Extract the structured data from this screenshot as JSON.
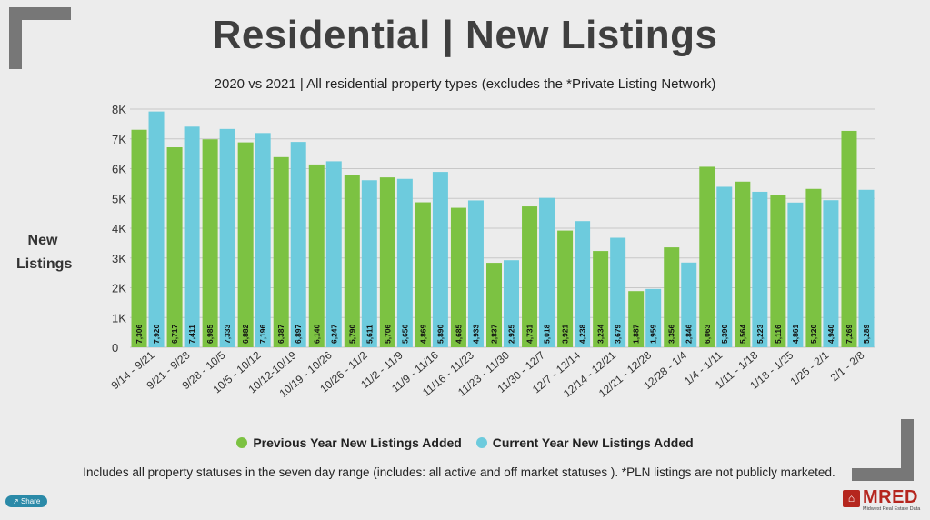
{
  "title": "Residential | New Listings",
  "subtitle": "2020 vs 2021 | All residential property types (excludes the *Private Listing Network)",
  "ylabel": "New Listings",
  "footnote": "Includes all property statuses in the seven day range (includes:  all active and off market statuses ).  *PLN listings are not publicly marketed.",
  "share_label": "Share",
  "logo": {
    "name": "MRED",
    "tagline": "Midwest Real Estate Data"
  },
  "colors": {
    "previous": "#7cc242",
    "current": "#6dcbdd",
    "grid": "#c8c8c8",
    "text": "#222222"
  },
  "chart_data": {
    "type": "bar",
    "title": "Residential | New Listings",
    "ylabel": "New Listings",
    "xlabel": "",
    "ylim": [
      0,
      8000
    ],
    "yticks": [
      0,
      1000,
      2000,
      3000,
      4000,
      5000,
      6000,
      7000,
      8000
    ],
    "yticklabels": [
      "0",
      "1K",
      "2K",
      "3K",
      "4K",
      "5K",
      "6K",
      "7K",
      "8K"
    ],
    "legend_position": "bottom",
    "categories": [
      "9/14 - 9/21",
      "9/21 - 9/28",
      "9/28 - 10/5",
      "10/5 - 10/12",
      "10/12-10/19",
      "10/19 - 10/26",
      "10/26 - 11/2",
      "11/2 - 11/9",
      "11/9 - 11/16",
      "11/16 - 11/23",
      "11/23 - 11/30",
      "11/30 - 12/7",
      "12/7 - 12/14",
      "12/14 - 12/21",
      "12/21 - 12/28",
      "12/28 - 1/4",
      "1/4 - 1/11",
      "1/11 - 1/18",
      "1/18 - 1/25",
      "1/25 - 2/1",
      "2/1 - 2/8"
    ],
    "series": [
      {
        "name": "Previous Year New Listings Added",
        "values": [
          7306,
          6717,
          6985,
          6882,
          6387,
          6140,
          5790,
          5706,
          4869,
          4685,
          2837,
          4731,
          3921,
          3234,
          1887,
          3356,
          6063,
          5564,
          5116,
          5320,
          7269
        ]
      },
      {
        "name": "Current Year New Listings Added",
        "values": [
          7920,
          7411,
          7333,
          7196,
          6897,
          6247,
          5611,
          5656,
          5890,
          4933,
          2925,
          5018,
          4238,
          3679,
          1959,
          2846,
          5390,
          5223,
          4861,
          4940,
          5289
        ]
      }
    ]
  }
}
